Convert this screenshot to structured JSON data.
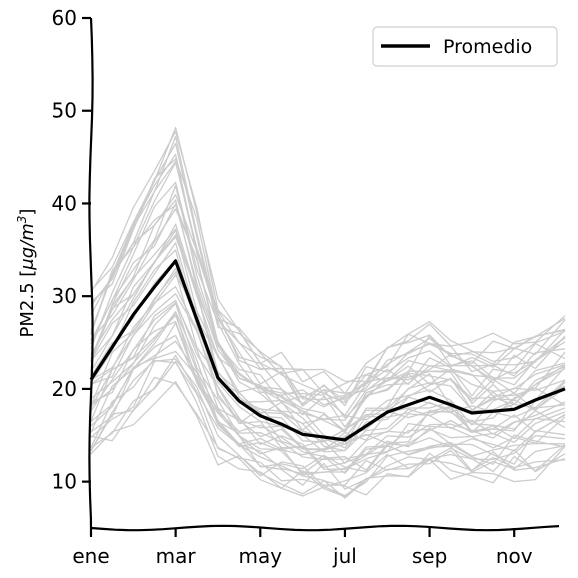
{
  "chart_data": {
    "type": "line",
    "title": "",
    "xlabel": "",
    "ylabel_main": "PM2.5 [",
    "ylabel_unit": "μg/m",
    "ylabel_exp": "3",
    "ylabel_close": "]",
    "x_tick_labels": [
      "ene",
      "mar",
      "may",
      "jul",
      "sep",
      "nov"
    ],
    "x_tick_positions": [
      1,
      3,
      5,
      7,
      9,
      11
    ],
    "xlim": [
      1,
      12.2
    ],
    "ylim": [
      5,
      60
    ],
    "y_ticks": [
      10,
      20,
      30,
      40,
      50,
      60
    ],
    "grid": false,
    "legend_position": "top-right",
    "colors": {
      "mean": "#000000",
      "background_lines": "#cccccc"
    },
    "x": [
      1,
      1.5,
      2,
      2.5,
      3,
      3.5,
      4,
      4.5,
      5,
      5.5,
      6,
      6.5,
      7,
      7.5,
      8,
      8.5,
      9,
      9.5,
      10,
      10.5,
      11,
      11.5,
      12.2
    ],
    "mean_series": {
      "name": "Promedio",
      "values": [
        21.0,
        24.5,
        28.0,
        31.0,
        33.8,
        27.5,
        21.2,
        18.7,
        17.1,
        16.2,
        15.1,
        14.8,
        14.5,
        16.0,
        17.5,
        18.3,
        19.1,
        18.3,
        17.4,
        17.6,
        17.8,
        18.8,
        20.0
      ]
    }
  }
}
